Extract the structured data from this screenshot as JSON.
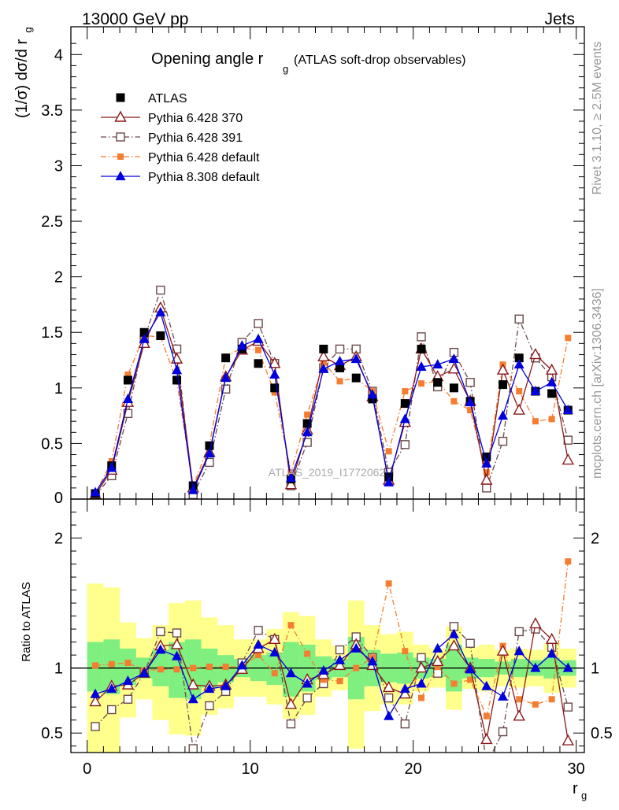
{
  "header": {
    "left": "13000 GeV pp",
    "right": "Jets",
    "side_top": "Rivet 3.1.10, ≥ 2.5M events",
    "side_bottom": "mcplots.cern.ch [arXiv:1306.3436]",
    "watermark": "ATLAS_2019_I1772062"
  },
  "title": {
    "main": "Opening angle r",
    "main_sub": "g",
    "suffix": "(ATLAS soft-drop observables)"
  },
  "axes": {
    "top_ylabel": "(1/σ) dσ/d r",
    "top_ylabel_sub": "g",
    "bottom_ylabel": "Ratio to ATLAS",
    "xlabel": "r",
    "xlabel_sub": "g"
  },
  "colors": {
    "atlas": "#000000",
    "p370": "#8b1a1a",
    "p391": "#6b4a4a",
    "p6def": "#f47e30",
    "p8def": "#0000dd",
    "band_inner": "#7fef7f",
    "band_outer": "#ffff8c"
  },
  "chart_data": [
    {
      "type": "scatter",
      "panel": "main",
      "xlim": [
        -1,
        30.5
      ],
      "ylim": [
        0,
        4.25
      ],
      "xticks": [
        0,
        10,
        20,
        30
      ],
      "yticks": [
        0.5,
        1,
        1.5,
        2,
        2.5,
        3,
        3.5,
        4
      ],
      "ytick_labels": [
        "0.5",
        "1",
        "1.5",
        "2",
        "2.5",
        "3",
        "3.5",
        "4"
      ],
      "ytick_zero_label": "0",
      "x": [
        0.5,
        1.5,
        2.5,
        3.5,
        4.5,
        5.5,
        6.5,
        7.5,
        8.5,
        9.5,
        10.5,
        11.5,
        12.5,
        13.5,
        14.5,
        15.5,
        16.5,
        17.5,
        18.5,
        19.5,
        20.5,
        21.5,
        22.5,
        23.5,
        24.5,
        25.5,
        26.5,
        27.5,
        28.5,
        29.5
      ],
      "legend": [
        "ATLAS",
        "Pythia 6.428 370",
        "Pythia 6.428 391",
        "Pythia 6.428 default",
        "Pythia 8.308 default"
      ],
      "series": [
        {
          "name": "ATLAS",
          "key": "atlas",
          "marker": "square-filled",
          "line": "none",
          "values": [
            0.05,
            0.3,
            1.07,
            1.5,
            1.47,
            1.07,
            0.12,
            0.48,
            1.27,
            1.35,
            1.22,
            1.0,
            0.18,
            0.68,
            1.35,
            1.18,
            1.09,
            0.9,
            0.2,
            0.86,
            1.35,
            1.05,
            1.0,
            0.88,
            0.38,
            1.03,
            1.27,
            0.97,
            0.95,
            0.8
          ]
        },
        {
          "name": "Pythia 6.428 370",
          "key": "p370",
          "marker": "triangle-open",
          "line": "solid",
          "values": [
            0.04,
            0.26,
            0.87,
            1.4,
            1.72,
            1.26,
            0.1,
            0.42,
            1.1,
            1.34,
            1.42,
            1.22,
            0.13,
            0.62,
            1.28,
            1.2,
            1.28,
            0.92,
            0.17,
            0.69,
            1.35,
            1.1,
            1.17,
            0.88,
            0.17,
            1.16,
            0.8,
            1.3,
            1.16,
            0.35
          ]
        },
        {
          "name": "Pythia 6.428 391",
          "key": "p391",
          "marker": "square-open",
          "line": "dashdot",
          "values": [
            0.03,
            0.21,
            0.77,
            1.44,
            1.88,
            1.35,
            0.04,
            0.33,
            0.99,
            1.41,
            1.58,
            1.22,
            0.12,
            0.51,
            1.18,
            1.35,
            1.35,
            0.97,
            0.24,
            0.49,
            1.46,
            1.01,
            1.32,
            1.05,
            0.1,
            0.52,
            1.62,
            1.27,
            1.1,
            0.53
          ]
        },
        {
          "name": "Pythia 6.428 default",
          "key": "p6def",
          "marker": "square-filled-small",
          "line": "dashdot",
          "values": [
            0.05,
            0.34,
            1.12,
            1.47,
            1.46,
            1.06,
            0.12,
            0.49,
            1.28,
            1.36,
            1.34,
            0.96,
            0.24,
            0.76,
            1.23,
            1.06,
            1.09,
            0.97,
            0.43,
            0.97,
            1.04,
            1.06,
            0.88,
            0.8,
            0.24,
            1.21,
            0.97,
            0.7,
            0.72,
            1.45
          ]
        },
        {
          "name": "Pythia 8.308 default",
          "key": "p8def",
          "marker": "triangle-filled",
          "line": "solid",
          "values": [
            0.06,
            0.28,
            0.9,
            1.44,
            1.68,
            1.16,
            0.08,
            0.41,
            1.09,
            1.38,
            1.44,
            1.12,
            0.19,
            0.6,
            1.17,
            1.24,
            1.26,
            0.94,
            0.15,
            0.72,
            1.19,
            1.21,
            1.26,
            0.87,
            0.32,
            0.75,
            1.21,
            0.97,
            1.05,
            0.8
          ]
        }
      ]
    },
    {
      "type": "scatter",
      "panel": "ratio",
      "xlim": [
        -1,
        30.5
      ],
      "ylim": [
        0.35,
        2.3
      ],
      "xticks": [
        0,
        10,
        20,
        30
      ],
      "yticks": [
        0.5,
        1,
        2
      ],
      "ytick_labels": [
        "0.5",
        "1",
        "2"
      ],
      "x": [
        0.5,
        1.5,
        2.5,
        3.5,
        4.5,
        5.5,
        6.5,
        7.5,
        8.5,
        9.5,
        10.5,
        11.5,
        12.5,
        13.5,
        14.5,
        15.5,
        16.5,
        17.5,
        18.5,
        19.5,
        20.5,
        21.5,
        22.5,
        23.5,
        24.5,
        25.5,
        26.5,
        27.5,
        28.5,
        29.5
      ],
      "band_inner": [
        [
          0.82,
          1.2
        ],
        [
          0.8,
          1.22
        ],
        [
          0.87,
          1.15
        ],
        [
          0.92,
          1.08
        ],
        [
          0.86,
          1.14
        ],
        [
          0.77,
          1.2
        ],
        [
          0.76,
          1.22
        ],
        [
          0.85,
          1.15
        ],
        [
          0.89,
          1.1
        ],
        [
          0.93,
          1.07
        ],
        [
          0.9,
          1.1
        ],
        [
          0.87,
          1.12
        ],
        [
          0.78,
          1.2
        ],
        [
          0.82,
          1.18
        ],
        [
          0.91,
          1.09
        ],
        [
          0.93,
          1.07
        ],
        [
          0.76,
          1.24
        ],
        [
          0.86,
          1.14
        ],
        [
          0.89,
          1.11
        ],
        [
          0.88,
          1.12
        ],
        [
          0.92,
          1.08
        ],
        [
          0.93,
          1.07
        ],
        [
          0.82,
          1.18
        ],
        [
          0.92,
          1.08
        ],
        [
          0.93,
          1.07
        ],
        [
          0.95,
          1.05
        ],
        [
          0.93,
          1.07
        ],
        [
          0.94,
          1.06
        ],
        [
          0.92,
          1.08
        ],
        [
          0.94,
          1.06
        ]
      ],
      "band_outer": [
        [
          0.35,
          1.65
        ],
        [
          0.35,
          1.62
        ],
        [
          0.62,
          1.35
        ],
        [
          0.76,
          1.23
        ],
        [
          0.6,
          1.33
        ],
        [
          0.49,
          1.5
        ],
        [
          0.48,
          1.52
        ],
        [
          0.64,
          1.39
        ],
        [
          0.69,
          1.33
        ],
        [
          0.78,
          1.22
        ],
        [
          0.78,
          1.22
        ],
        [
          0.72,
          1.3
        ],
        [
          0.61,
          1.43
        ],
        [
          0.64,
          1.4
        ],
        [
          0.78,
          1.22
        ],
        [
          0.83,
          1.17
        ],
        [
          0.38,
          1.52
        ],
        [
          0.67,
          1.33
        ],
        [
          0.72,
          1.26
        ],
        [
          0.72,
          1.28
        ],
        [
          0.82,
          1.18
        ],
        [
          0.85,
          1.15
        ],
        [
          0.68,
          1.32
        ],
        [
          0.84,
          1.16
        ],
        [
          0.82,
          1.18
        ],
        [
          0.86,
          1.14
        ],
        [
          0.85,
          1.15
        ],
        [
          0.86,
          1.14
        ],
        [
          0.81,
          1.19
        ],
        [
          0.85,
          1.15
        ]
      ],
      "series": [
        {
          "name": "Pythia 6.428 370",
          "key": "p370",
          "marker": "triangle-open",
          "line": "solid",
          "values": [
            0.74,
            0.86,
            0.87,
            0.96,
            1.17,
            1.18,
            0.87,
            0.86,
            0.87,
            0.99,
            1.15,
            1.22,
            0.72,
            0.91,
            0.95,
            1.02,
            1.18,
            1.02,
            0.85,
            0.8,
            1.0,
            1.05,
            1.17,
            1.0,
            0.45,
            1.13,
            0.63,
            1.34,
            1.22,
            0.44
          ]
        },
        {
          "name": "Pythia 6.428 391",
          "key": "p391",
          "marker": "square-open",
          "line": "dashdot",
          "values": [
            0.55,
            0.68,
            0.76,
            0.96,
            1.28,
            1.27,
            0.38,
            0.71,
            0.82,
            1.04,
            1.29,
            1.22,
            0.57,
            0.77,
            0.88,
            1.14,
            1.24,
            1.08,
            0.77,
            0.57,
            1.08,
            0.96,
            1.32,
            1.19,
            0.26,
            0.51,
            1.28,
            1.3,
            1.16,
            0.7
          ]
        },
        {
          "name": "Pythia 6.428 default",
          "key": "p6def",
          "marker": "square-filled-small",
          "line": "dashdot",
          "values": [
            1.02,
            1.03,
            1.04,
            0.98,
            0.99,
            0.99,
            1.0,
            1.01,
            1.01,
            1.01,
            1.1,
            0.96,
            1.33,
            1.11,
            0.91,
            0.9,
            1.0,
            1.08,
            1.65,
            1.13,
            0.77,
            1.01,
            0.88,
            0.91,
            0.63,
            1.17,
            0.76,
            0.72,
            0.76,
            1.82
          ]
        },
        {
          "name": "Pythia 8.308 default",
          "key": "p8def",
          "marker": "triangle-filled",
          "line": "solid",
          "values": [
            0.8,
            0.84,
            0.9,
            0.96,
            1.14,
            1.09,
            0.76,
            0.84,
            0.86,
            1.02,
            1.18,
            1.12,
            0.96,
            0.88,
            0.98,
            1.06,
            1.15,
            1.05,
            0.63,
            0.84,
            0.88,
            1.15,
            1.26,
            0.99,
            0.86,
            0.78,
            1.13,
            1.0,
            1.11,
            1.0
          ]
        }
      ]
    }
  ]
}
